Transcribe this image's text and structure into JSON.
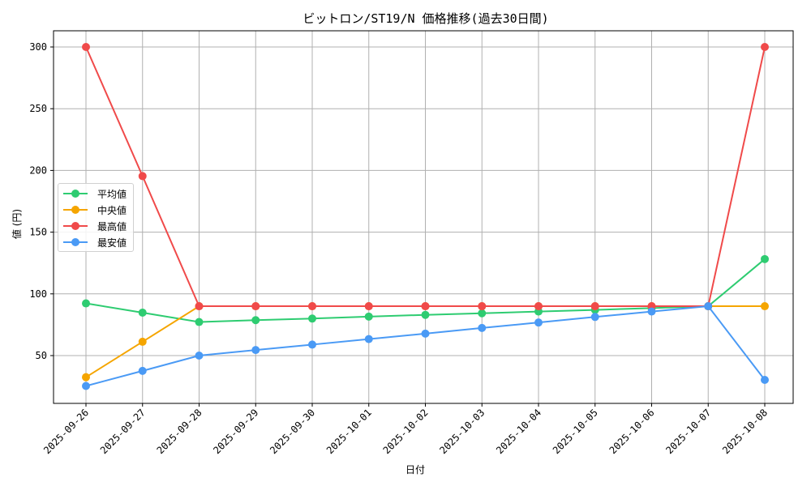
{
  "chart_data": {
    "type": "line",
    "title": "ビットロン/ST19/N 価格推移(過去30日間)",
    "xlabel": "日付",
    "ylabel": "値 (円)",
    "x": [
      "2025-09-26",
      "2025-09-27",
      "2025-09-28",
      "2025-09-29",
      "2025-09-30",
      "2025-10-01",
      "2025-10-02",
      "2025-10-03",
      "2025-10-04",
      "2025-10-05",
      "2025-10-06",
      "2025-10-07",
      "2025-10-08"
    ],
    "yticks": [
      50,
      100,
      150,
      200,
      250,
      300
    ],
    "ylim": [
      12,
      314
    ],
    "grid": true,
    "legend_position": "center left",
    "series": [
      {
        "name": "平均値",
        "color": "#2ecc71",
        "values": [
          92.3,
          84.8,
          77.2,
          78.7,
          80.0,
          81.6,
          83.0,
          84.3,
          85.7,
          87.0,
          88.5,
          90.0,
          128.2
        ]
      },
      {
        "name": "中央値",
        "color": "#f5a500",
        "values": [
          32.5,
          61.2,
          90.0,
          90.0,
          90.0,
          90.0,
          90.0,
          90.0,
          90.0,
          90.0,
          90.0,
          90.0,
          90.0
        ]
      },
      {
        "name": "最高値",
        "color": "#f04a4a",
        "values": [
          300.0,
          195.4,
          90.0,
          90.0,
          90.0,
          90.0,
          90.0,
          90.0,
          90.0,
          90.0,
          90.0,
          90.0,
          300.0
        ]
      },
      {
        "name": "最安値",
        "color": "#4a9af5",
        "values": [
          25.4,
          37.6,
          50.0,
          54.5,
          58.9,
          63.4,
          67.8,
          72.4,
          76.8,
          81.3,
          85.7,
          90.0,
          30.3
        ]
      }
    ]
  }
}
